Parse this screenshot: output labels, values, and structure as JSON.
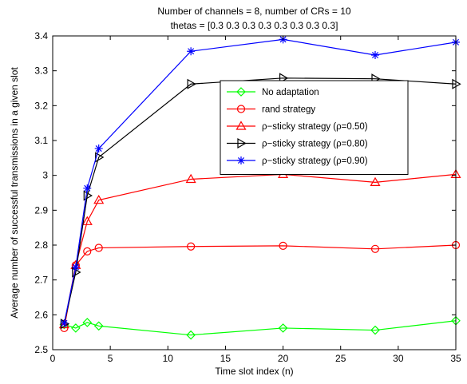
{
  "chart_data": {
    "type": "line",
    "title_lines": [
      "Number of channels = 8, number of CRs = 10",
      "thetas = [0.3 0.3 0.3 0.3 0.3 0.3 0.3 0.3]"
    ],
    "xlabel": "Time slot index (n)",
    "ylabel": "Average number of successful transmissions in a given slot",
    "xlim": [
      0,
      35
    ],
    "ylim": [
      2.5,
      3.4
    ],
    "xticks": [
      0,
      5,
      10,
      15,
      20,
      25,
      30,
      35
    ],
    "yticks": [
      2.5,
      2.6,
      2.7,
      2.8,
      2.9,
      3.0,
      3.1,
      3.2,
      3.3,
      3.4
    ],
    "ytick_labels": [
      "2.5",
      "2.6",
      "2.7",
      "2.8",
      "2.9",
      "3",
      "3.1",
      "3.2",
      "3.3",
      "3.4"
    ],
    "grid": false,
    "legend_position": "center-right",
    "series": [
      {
        "name": "No adaptation",
        "color": "#00ff00",
        "marker": "diamond",
        "x": [
          1,
          2,
          3,
          4,
          12,
          20,
          28,
          35
        ],
        "y": [
          2.572,
          2.562,
          2.578,
          2.568,
          2.542,
          2.562,
          2.556,
          2.583
        ]
      },
      {
        "name": "rand strategy",
        "color": "#ff0000",
        "marker": "circle",
        "x": [
          1,
          2,
          3,
          4,
          12,
          20,
          28,
          35
        ],
        "y": [
          2.562,
          2.742,
          2.782,
          2.792,
          2.796,
          2.798,
          2.789,
          2.8
        ]
      },
      {
        "name": "ρ−sticky strategy  (ρ=0.50)",
        "color": "#ff0000",
        "marker": "triangle-up",
        "x": [
          1,
          2,
          3,
          4,
          12,
          20,
          28,
          35
        ],
        "y": [
          2.572,
          2.742,
          2.868,
          2.929,
          2.989,
          3.003,
          2.98,
          3.003
        ]
      },
      {
        "name": "ρ−sticky strategy  (ρ=0.80)",
        "color": "#000000",
        "marker": "triangle-right",
        "x": [
          1,
          2,
          3,
          4,
          12,
          20,
          28,
          35
        ],
        "y": [
          2.574,
          2.722,
          2.942,
          3.052,
          3.262,
          3.279,
          3.277,
          3.262
        ]
      },
      {
        "name": "ρ−sticky strategy  (ρ=0.90)",
        "color": "#0000ff",
        "marker": "star",
        "x": [
          1,
          2,
          3,
          4,
          12,
          20,
          28,
          35
        ],
        "y": [
          2.576,
          2.737,
          2.963,
          3.077,
          3.356,
          3.39,
          3.345,
          3.382
        ]
      }
    ]
  }
}
